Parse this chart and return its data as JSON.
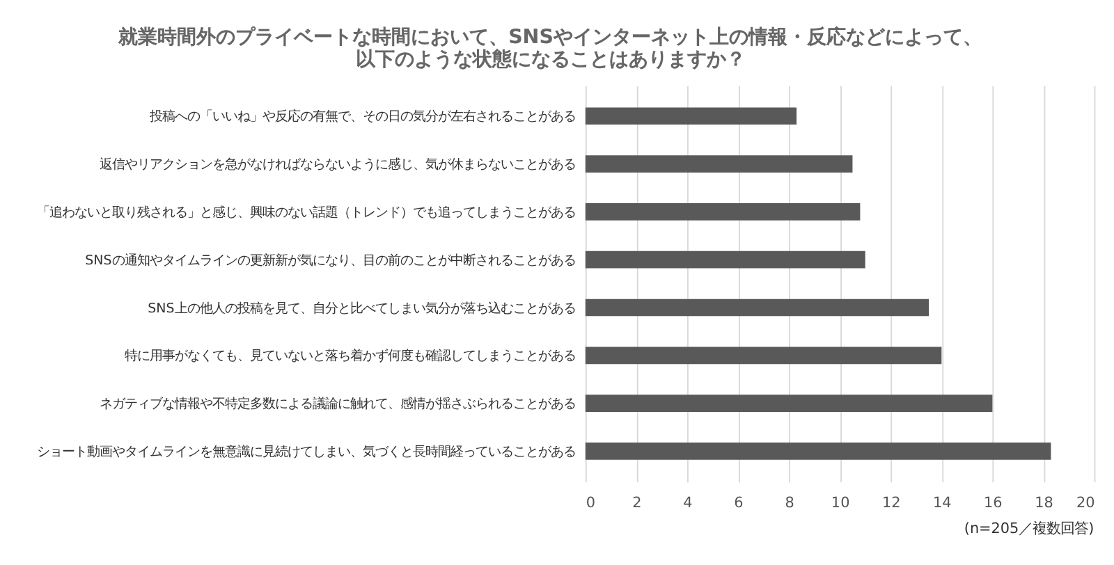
{
  "chart_data": {
    "type": "bar",
    "orientation": "horizontal",
    "title": "就業時間外のプライベートな時間において、SNSやインターネット上の情報・反応などによって、以下のような状態になることはありますか？",
    "categories": [
      "投稿への「いいね」や反応の有無で、その日の気分が左右されることがある",
      "返信やリアクションを急がなければならないように感じ、気が休まらないことがある",
      "「追わないと取り残される」と感じ、興味のない話題（トレンド）でも追ってしまうことがある",
      "SNSの通知やタイムラインの更新新が気になり、目の前のことが中断されることがある",
      "SNS上の他人の投稿を見て、自分と比べてしまい気分が落ち込むことがある",
      "特に用事がなくても、見ていないと落ち着かず何度も確認してしまうことがある",
      "ネガティブな情報や不特定多数による議論に触れて、感情が揺さぶられることがある",
      "ショート動画やタイムラインを無意識に見続けてしまい、気づくと長時間経っていることがある"
    ],
    "values": [
      8.3,
      10.5,
      10.8,
      11.0,
      13.5,
      14.0,
      16.0,
      18.3
    ],
    "color": "#595959",
    "xlim": [
      0,
      20
    ],
    "xticks": [
      0,
      2,
      4,
      6,
      8,
      10,
      12,
      14,
      16,
      18,
      20
    ],
    "grid": "x",
    "annotations": [
      "(n=205／複数回答)"
    ]
  }
}
